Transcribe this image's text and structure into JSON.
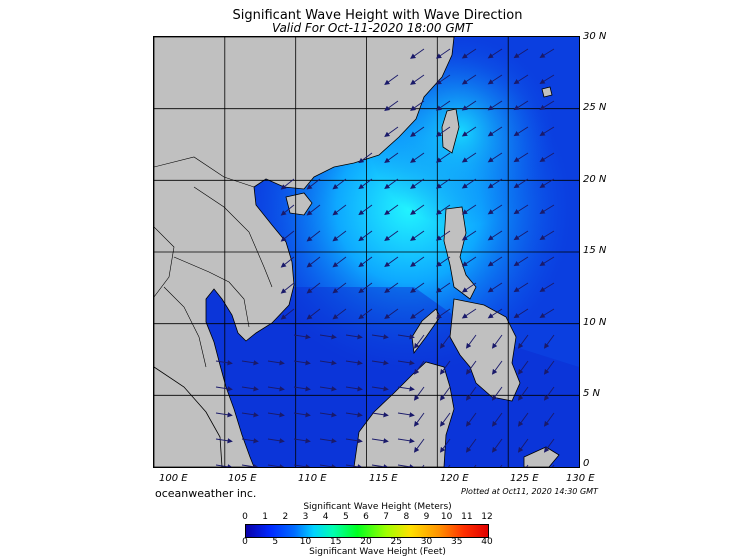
{
  "map": {
    "title": "Significant Wave Height with Wave Direction",
    "subtitle": "Valid For Oct-11-2020 18:00 GMT",
    "region": "South China Sea / Philippines",
    "lon_labels": [
      "100 E",
      "105 E",
      "110 E",
      "115 E",
      "120 E",
      "125 E",
      "130 E"
    ],
    "lat_labels": [
      "30 N",
      "25 N",
      "20 N",
      "15 N",
      "10 N",
      "5 N",
      "0"
    ],
    "lon_range": [
      100,
      130
    ],
    "lat_range": [
      0,
      30
    ],
    "credit": "oceanweather inc.",
    "plotted": "Plotted at Oct11, 2020 14:30 GMT",
    "colors": {
      "land": "#c0c0c0",
      "sea_low": "#0a2bdc",
      "sea_high": "#00e8ff",
      "arrow": "#1a1a6a"
    }
  },
  "legend": {
    "meters_title": "Significant Wave Height (Meters)",
    "meters_ticks": [
      "0",
      "1",
      "2",
      "3",
      "4",
      "5",
      "6",
      "7",
      "8",
      "9",
      "10",
      "11",
      "12"
    ],
    "feet_title": "Significant Wave Height (Feet)",
    "feet_ticks": [
      "0",
      "5",
      "10",
      "15",
      "20",
      "25",
      "30",
      "35",
      "40"
    ]
  }
}
